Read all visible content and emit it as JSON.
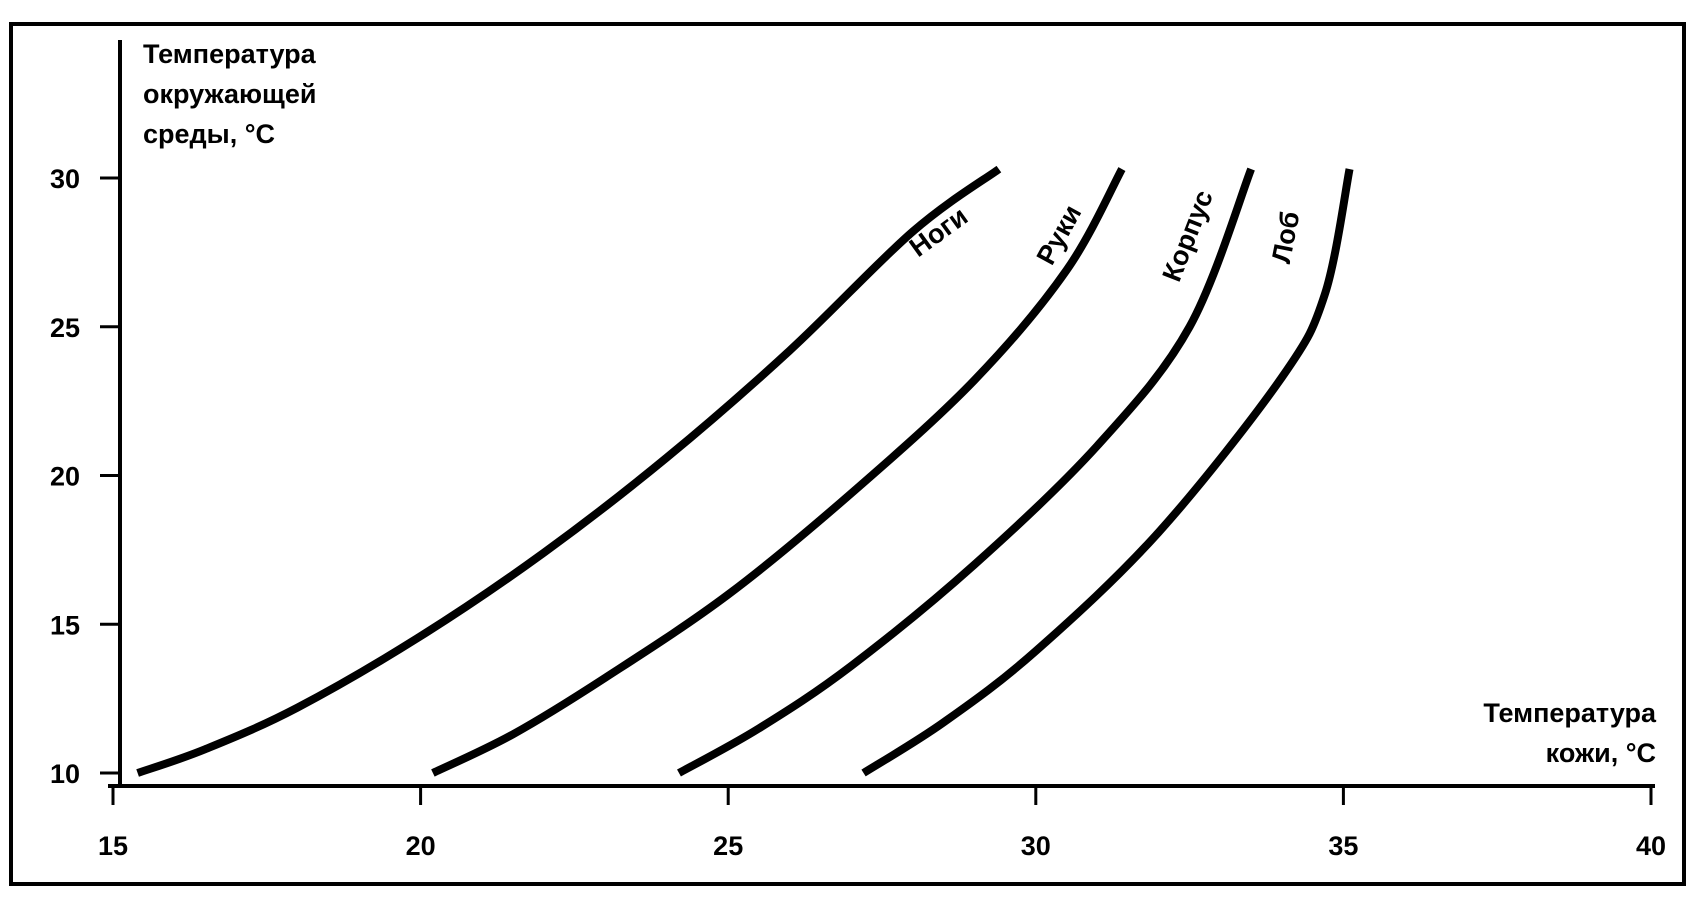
{
  "chart_data": {
    "type": "line",
    "x_axis": {
      "label_lines": [
        "Температура",
        "кожи, °C"
      ],
      "range": [
        15,
        40
      ],
      "ticks": [
        15,
        20,
        25,
        30,
        35,
        40
      ]
    },
    "y_axis": {
      "label_lines": [
        "Температура",
        "окружающей",
        "среды, °C"
      ],
      "range": [
        10,
        30
      ],
      "ticks": [
        10,
        15,
        20,
        25,
        30
      ]
    },
    "series": [
      {
        "name": "Ноги",
        "points": [
          [
            15.4,
            10
          ],
          [
            16.5,
            10.8
          ],
          [
            18,
            12.2
          ],
          [
            20,
            14.6
          ],
          [
            22,
            17.4
          ],
          [
            24,
            20.6
          ],
          [
            26,
            24.2
          ],
          [
            28,
            28.2
          ],
          [
            29.4,
            30.3
          ]
        ]
      },
      {
        "name": "Руки",
        "points": [
          [
            20.2,
            10
          ],
          [
            21.5,
            11.3
          ],
          [
            23,
            13.2
          ],
          [
            25,
            16
          ],
          [
            27,
            19.4
          ],
          [
            29,
            23.2
          ],
          [
            30.5,
            26.9
          ],
          [
            31.4,
            30.3
          ]
        ]
      },
      {
        "name": "Корпус",
        "points": [
          [
            24.2,
            10
          ],
          [
            25.5,
            11.5
          ],
          [
            27,
            13.6
          ],
          [
            29,
            17
          ],
          [
            31,
            21
          ],
          [
            32.5,
            25
          ],
          [
            33.5,
            30.3
          ]
        ]
      },
      {
        "name": "Лоб",
        "points": [
          [
            27.2,
            10
          ],
          [
            28.5,
            11.7
          ],
          [
            30,
            14.1
          ],
          [
            32,
            18.1
          ],
          [
            34,
            23.3
          ],
          [
            34.7,
            26.1
          ],
          [
            35.1,
            30.3
          ]
        ]
      }
    ],
    "grid": false,
    "legend": "none"
  }
}
